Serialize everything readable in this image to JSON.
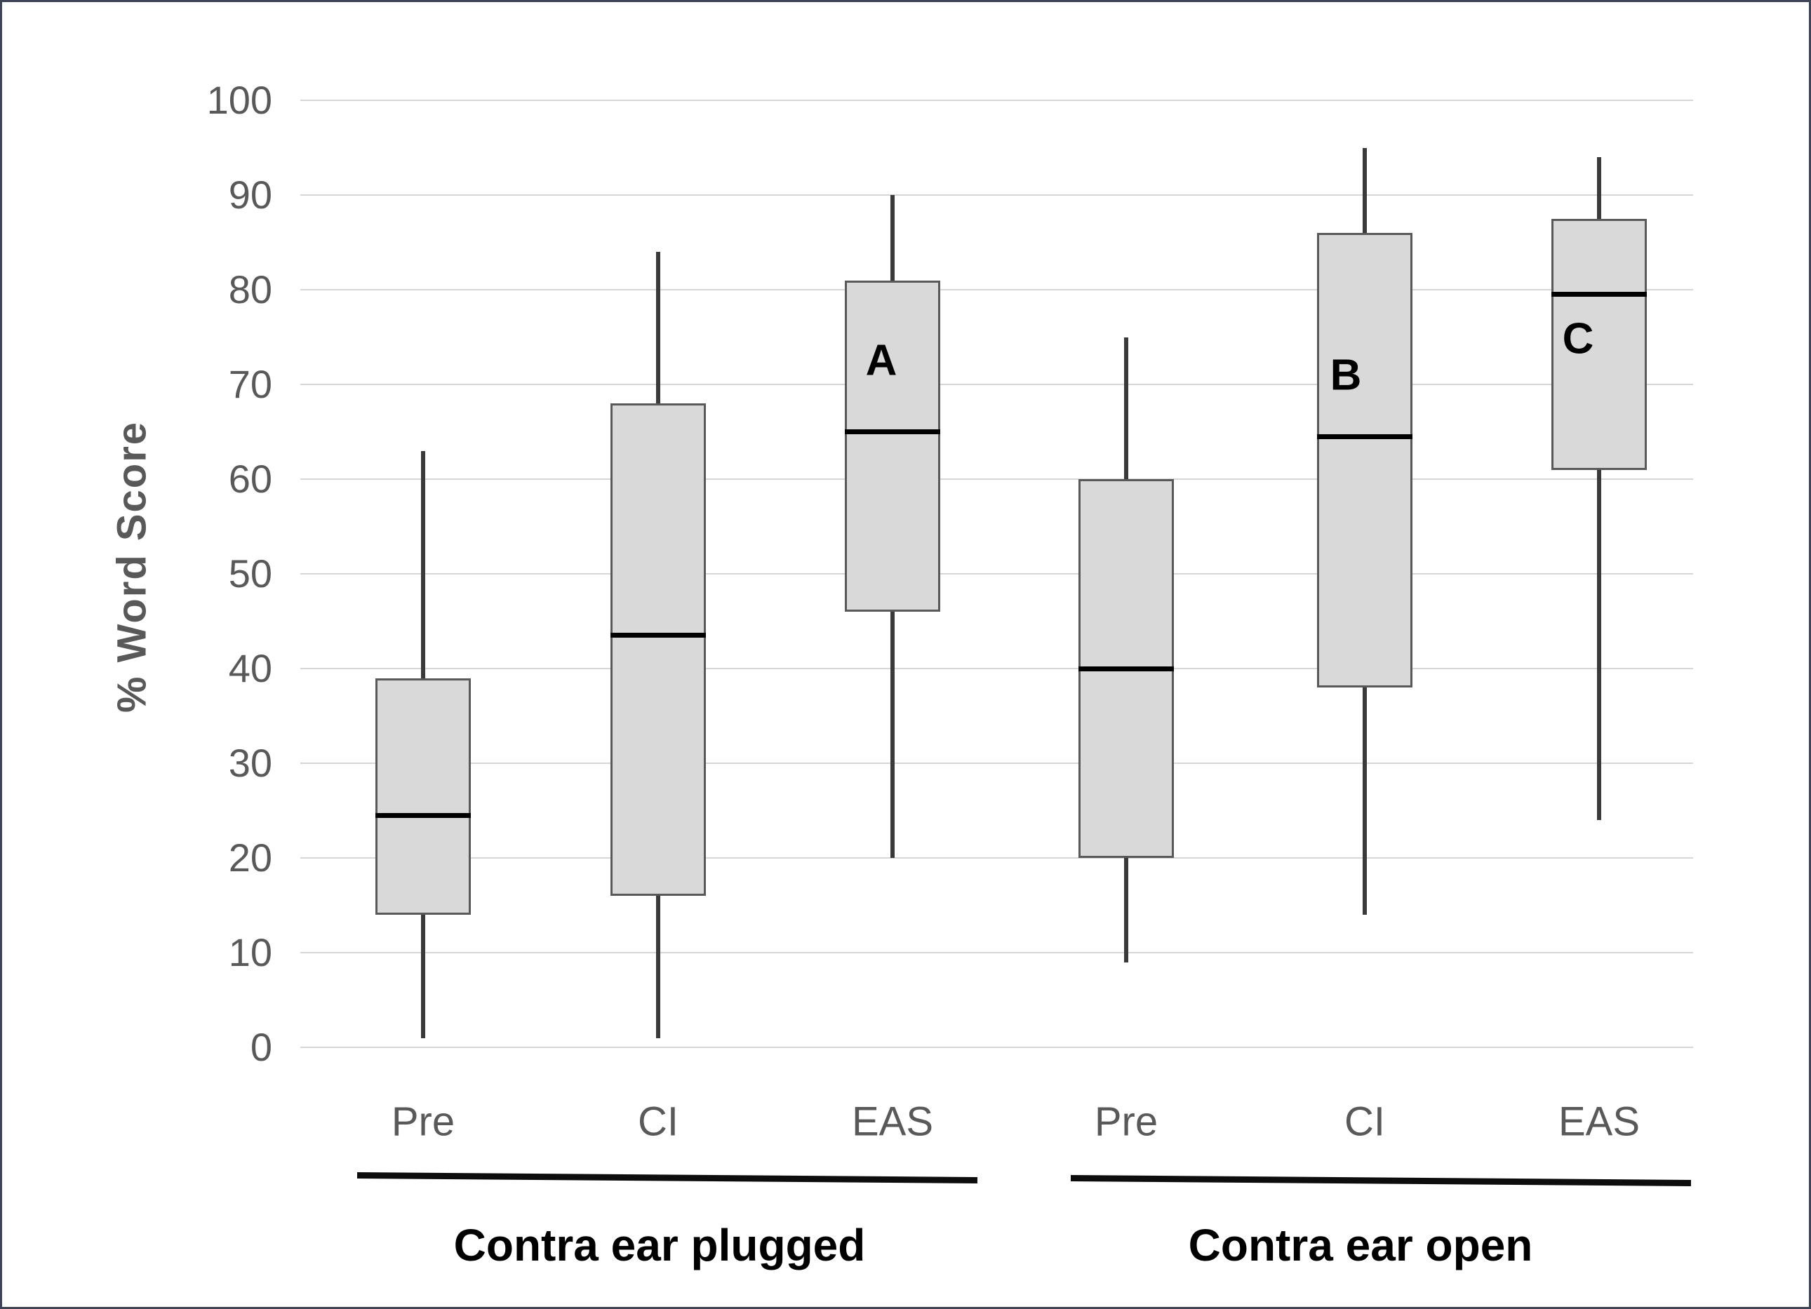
{
  "figure": {
    "background_color": "#ffffff",
    "frame_color": "#3e4357"
  },
  "colors": {
    "box_fill": "#d9d9d9",
    "box_border": "#595959",
    "median_line": "#000000",
    "whisker": "#3a3a3a",
    "gridline": "#d6d6d6",
    "axis_text": "#595959",
    "group_underline": "#0d0d0d",
    "annotation_text": "#000000"
  },
  "chart_data": {
    "type": "box",
    "title": "",
    "xlabel": "",
    "ylabel": "% Word Score",
    "ylim": [
      0,
      100
    ],
    "yticks": [
      0,
      10,
      20,
      30,
      40,
      50,
      60,
      70,
      80,
      90,
      100
    ],
    "grid": true,
    "legend": "none",
    "categories": [
      "Pre",
      "CI",
      "EAS",
      "Pre",
      "CI",
      "EAS"
    ],
    "group_labels": [
      "Contra ear plugged",
      "Contra ear open"
    ],
    "series": [
      {
        "group": "Contra ear plugged",
        "category": "Pre",
        "min": 1,
        "q1": 14,
        "median": 24.5,
        "q3": 39,
        "max": 63,
        "annotation": ""
      },
      {
        "group": "Contra ear plugged",
        "category": "CI",
        "min": 1,
        "q1": 16,
        "median": 43.5,
        "q3": 68,
        "max": 84,
        "annotation": ""
      },
      {
        "group": "Contra ear plugged",
        "category": "EAS",
        "min": 20,
        "q1": 46,
        "median": 65,
        "q3": 81,
        "max": 90,
        "annotation": "A"
      },
      {
        "group": "Contra ear open",
        "category": "Pre",
        "min": 9,
        "q1": 20,
        "median": 40,
        "q3": 60,
        "max": 75,
        "annotation": ""
      },
      {
        "group": "Contra ear open",
        "category": "CI",
        "min": 14,
        "q1": 38,
        "median": 64.5,
        "q3": 86,
        "max": 95,
        "annotation": "B"
      },
      {
        "group": "Contra ear open",
        "category": "EAS",
        "min": 24,
        "q1": 61,
        "median": 79.5,
        "q3": 87.5,
        "max": 94,
        "annotation": "C"
      }
    ]
  }
}
